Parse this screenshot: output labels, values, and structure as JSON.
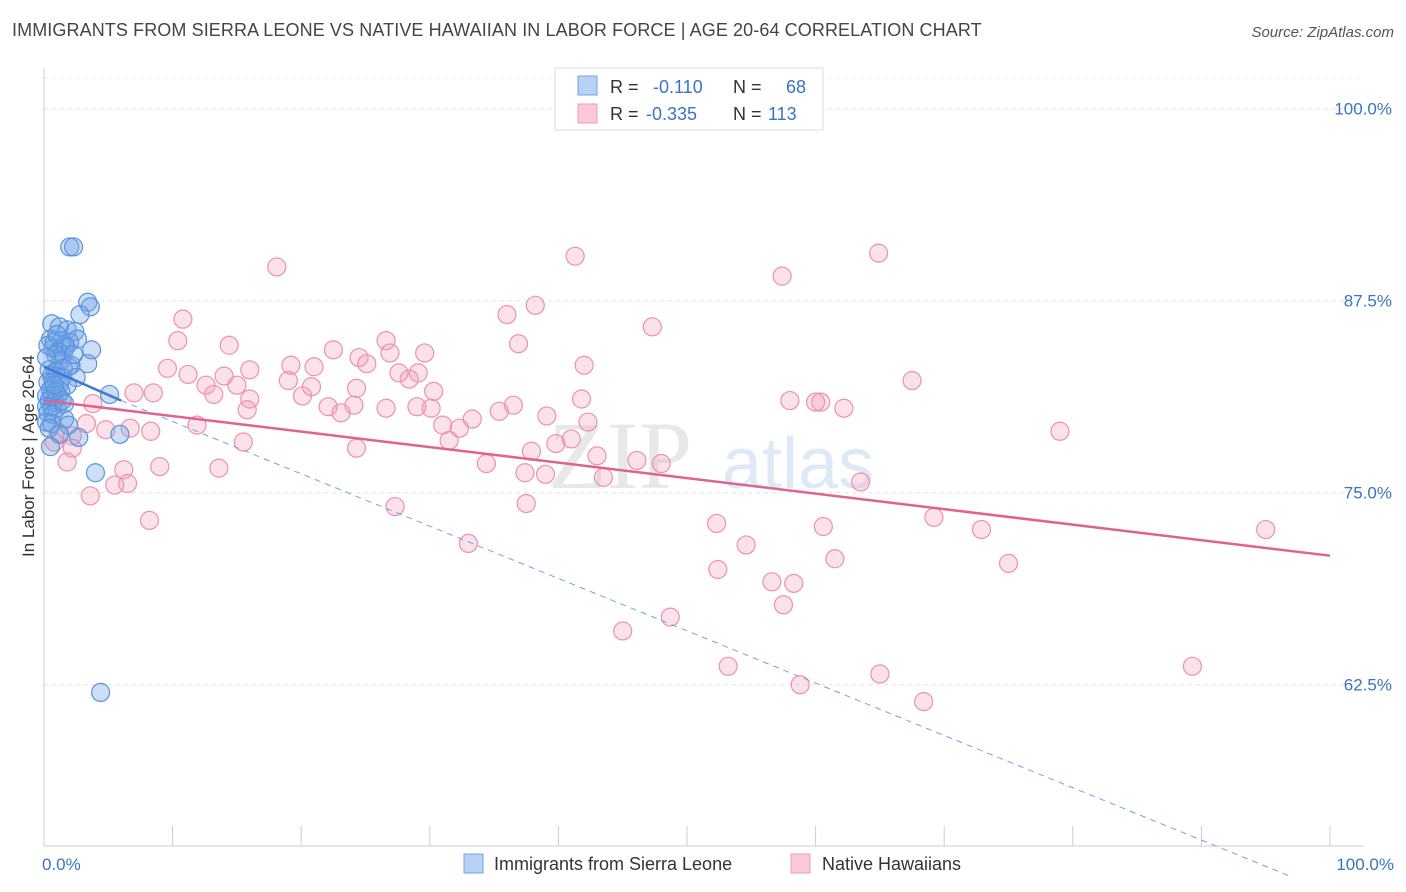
{
  "title": "IMMIGRANTS FROM SIERRA LEONE VS NATIVE HAWAIIAN IN LABOR FORCE | AGE 20-64 CORRELATION CHART",
  "source": "Source: ZipAtlas.com",
  "colors": {
    "blue": "#6fa3e6",
    "blue_line": "#3a7bd5",
    "pink": "#f29ab5",
    "pink_line": "#e0628f",
    "axis_label": "#3b73c4"
  },
  "legend": {
    "r_label": "R =",
    "n_label": "N =",
    "series": [
      {
        "name": "Immigrants from Sierra Leone",
        "r": "-0.110",
        "n": "68"
      },
      {
        "name": "Native Hawaiians",
        "r": "-0.335",
        "n": "113"
      }
    ]
  },
  "watermark": {
    "zip": "ZIP",
    "atlas": "atlas"
  },
  "chart_data": {
    "type": "scatter",
    "ylabel": "In Labor Force | Age 20-64",
    "xlabel": "",
    "xlim": [
      0,
      100
    ],
    "ylim": [
      52,
      102
    ],
    "x_tick_labels": [
      {
        "value": 0,
        "label": "0.0%"
      },
      {
        "value": 100,
        "label": "100.0%"
      }
    ],
    "x_minor_ticks": [
      10,
      20,
      30,
      40,
      50,
      60,
      70,
      80,
      90
    ],
    "y_ticks": [
      {
        "value": 100,
        "label": "100.0%"
      },
      {
        "value": 87.5,
        "label": "87.5%"
      },
      {
        "value": 75,
        "label": "75.0%"
      },
      {
        "value": 62.5,
        "label": "62.5%"
      }
    ],
    "grid": "horizontal dashed",
    "legend_position": "top-center",
    "series": [
      {
        "name": "Immigrants from Sierra Leone",
        "color": "#6fa3e6",
        "trend": {
          "x": [
            0,
            6
          ],
          "y": [
            83.2,
            81.0
          ],
          "dashed_extension": {
            "x": [
              6,
              97
            ],
            "y": [
              81.0,
              50.0
            ]
          }
        },
        "points": [
          [
            2.0,
            91.0
          ],
          [
            2.3,
            91.0
          ],
          [
            3.4,
            87.4
          ],
          [
            3.6,
            87.1
          ],
          [
            2.8,
            86.6
          ],
          [
            0.6,
            86.0
          ],
          [
            1.2,
            85.8
          ],
          [
            1.8,
            85.6
          ],
          [
            2.4,
            85.5
          ],
          [
            2.6,
            85.0
          ],
          [
            0.5,
            85.0
          ],
          [
            0.8,
            84.8
          ],
          [
            1.4,
            84.9
          ],
          [
            1.6,
            84.6
          ],
          [
            2.0,
            84.8
          ],
          [
            0.7,
            84.4
          ],
          [
            1.1,
            84.2
          ],
          [
            1.5,
            84.0
          ],
          [
            3.7,
            84.3
          ],
          [
            1.7,
            84.5
          ],
          [
            0.3,
            84.6
          ],
          [
            0.9,
            84.0
          ],
          [
            1.3,
            83.6
          ],
          [
            2.1,
            83.3
          ],
          [
            3.4,
            83.4
          ],
          [
            0.4,
            83.0
          ],
          [
            0.9,
            82.9
          ],
          [
            1.5,
            83.1
          ],
          [
            1.9,
            83.2
          ],
          [
            0.6,
            82.6
          ],
          [
            1.0,
            82.6
          ],
          [
            1.4,
            82.5
          ],
          [
            2.5,
            82.5
          ],
          [
            0.3,
            82.2
          ],
          [
            0.7,
            82.2
          ],
          [
            1.2,
            82.1
          ],
          [
            1.8,
            82.0
          ],
          [
            0.5,
            81.7
          ],
          [
            0.9,
            81.6
          ],
          [
            1.3,
            81.6
          ],
          [
            0.2,
            81.3
          ],
          [
            0.6,
            81.3
          ],
          [
            1.1,
            81.3
          ],
          [
            5.1,
            81.4
          ],
          [
            0.4,
            81.0
          ],
          [
            0.8,
            80.9
          ],
          [
            1.4,
            81.0
          ],
          [
            0.2,
            80.6
          ],
          [
            0.6,
            80.6
          ],
          [
            1.0,
            80.5
          ],
          [
            0.3,
            80.2
          ],
          [
            0.7,
            80.1
          ],
          [
            1.6,
            79.8
          ],
          [
            0.2,
            79.6
          ],
          [
            0.6,
            79.5
          ],
          [
            1.9,
            79.4
          ],
          [
            0.4,
            79.2
          ],
          [
            1.2,
            78.8
          ],
          [
            2.7,
            78.6
          ],
          [
            5.9,
            78.8
          ],
          [
            0.5,
            78.0
          ],
          [
            4.0,
            76.3
          ],
          [
            4.4,
            62.0
          ],
          [
            0.2,
            83.8
          ],
          [
            1.0,
            85.3
          ],
          [
            2.3,
            84.0
          ],
          [
            0.8,
            82.0
          ],
          [
            1.6,
            80.8
          ]
        ]
      },
      {
        "name": "Native Hawaiians",
        "color": "#f29ab5",
        "trend": {
          "x": [
            0,
            100
          ],
          "y": [
            81.0,
            70.9
          ]
        },
        "points": [
          [
            64.9,
            90.6
          ],
          [
            41.3,
            90.4
          ],
          [
            18.1,
            89.7
          ],
          [
            57.4,
            89.1
          ],
          [
            38.2,
            87.2
          ],
          [
            36.0,
            86.6
          ],
          [
            10.8,
            86.3
          ],
          [
            47.3,
            85.8
          ],
          [
            10.4,
            84.9
          ],
          [
            36.9,
            84.7
          ],
          [
            26.6,
            84.9
          ],
          [
            14.4,
            84.6
          ],
          [
            22.5,
            84.3
          ],
          [
            26.9,
            84.1
          ],
          [
            29.6,
            84.1
          ],
          [
            24.5,
            83.8
          ],
          [
            25.1,
            83.4
          ],
          [
            19.2,
            83.3
          ],
          [
            21.0,
            83.2
          ],
          [
            16.0,
            83.0
          ],
          [
            42.0,
            83.3
          ],
          [
            9.6,
            83.1
          ],
          [
            11.2,
            82.7
          ],
          [
            27.6,
            82.8
          ],
          [
            29.1,
            82.8
          ],
          [
            14.0,
            82.6
          ],
          [
            28.4,
            82.4
          ],
          [
            19.0,
            82.3
          ],
          [
            12.6,
            82.0
          ],
          [
            15.0,
            82.0
          ],
          [
            20.8,
            81.9
          ],
          [
            24.3,
            81.8
          ],
          [
            30.3,
            81.6
          ],
          [
            7.0,
            81.5
          ],
          [
            8.5,
            81.5
          ],
          [
            13.2,
            81.4
          ],
          [
            20.1,
            81.3
          ],
          [
            16.0,
            81.1
          ],
          [
            41.8,
            81.1
          ],
          [
            22.1,
            80.6
          ],
          [
            24.1,
            80.7
          ],
          [
            26.6,
            80.5
          ],
          [
            29.0,
            80.6
          ],
          [
            36.5,
            80.7
          ],
          [
            58.0,
            81.0
          ],
          [
            67.5,
            82.3
          ],
          [
            60.4,
            80.9
          ],
          [
            15.8,
            80.4
          ],
          [
            60.0,
            80.9
          ],
          [
            62.2,
            80.5
          ],
          [
            3.8,
            80.8
          ],
          [
            23.1,
            80.2
          ],
          [
            30.1,
            80.5
          ],
          [
            35.4,
            80.3
          ],
          [
            33.3,
            79.8
          ],
          [
            31.0,
            79.4
          ],
          [
            32.3,
            79.2
          ],
          [
            39.1,
            80.0
          ],
          [
            42.3,
            79.6
          ],
          [
            11.9,
            79.4
          ],
          [
            8.3,
            79.0
          ],
          [
            3.3,
            79.5
          ],
          [
            4.8,
            79.1
          ],
          [
            6.7,
            79.2
          ],
          [
            79.0,
            79.0
          ],
          [
            1.2,
            78.9
          ],
          [
            2.2,
            78.7
          ],
          [
            31.5,
            78.4
          ],
          [
            39.8,
            78.2
          ],
          [
            41.0,
            78.5
          ],
          [
            0.8,
            78.3
          ],
          [
            2.2,
            77.9
          ],
          [
            15.5,
            78.3
          ],
          [
            24.3,
            77.9
          ],
          [
            37.9,
            77.7
          ],
          [
            43.0,
            77.4
          ],
          [
            46.1,
            77.1
          ],
          [
            48.0,
            76.9
          ],
          [
            1.8,
            77.0
          ],
          [
            9.0,
            76.7
          ],
          [
            13.6,
            76.6
          ],
          [
            6.2,
            76.5
          ],
          [
            34.4,
            76.9
          ],
          [
            37.4,
            76.3
          ],
          [
            39.0,
            76.2
          ],
          [
            43.5,
            76.0
          ],
          [
            6.5,
            75.6
          ],
          [
            5.5,
            75.5
          ],
          [
            3.6,
            74.8
          ],
          [
            37.5,
            74.3
          ],
          [
            63.5,
            75.7
          ],
          [
            27.3,
            74.1
          ],
          [
            52.3,
            73.0
          ],
          [
            69.2,
            73.4
          ],
          [
            72.9,
            72.6
          ],
          [
            60.6,
            72.8
          ],
          [
            95.0,
            72.6
          ],
          [
            8.2,
            73.2
          ],
          [
            33.0,
            71.7
          ],
          [
            54.6,
            71.6
          ],
          [
            61.5,
            70.7
          ],
          [
            52.4,
            70.0
          ],
          [
            75.0,
            70.4
          ],
          [
            56.6,
            69.2
          ],
          [
            58.3,
            69.1
          ],
          [
            57.5,
            67.7
          ],
          [
            48.7,
            66.9
          ],
          [
            45.0,
            66.0
          ],
          [
            53.2,
            63.7
          ],
          [
            58.8,
            62.5
          ],
          [
            68.4,
            61.4
          ],
          [
            89.3,
            63.7
          ],
          [
            65.0,
            63.2
          ]
        ]
      }
    ]
  }
}
